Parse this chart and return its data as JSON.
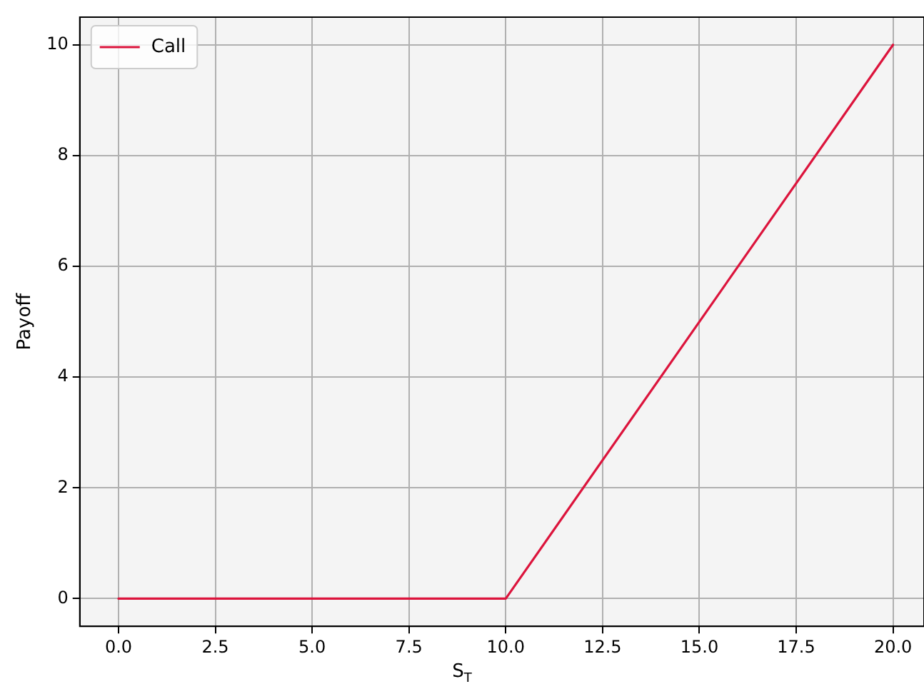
{
  "chart_data": {
    "type": "line",
    "xlabel": "S$_{T}$",
    "ylabel": "Payoff",
    "series": [
      {
        "name": "Call",
        "color": "#dc143c",
        "x": [
          0,
          10,
          20
        ],
        "values": [
          0,
          0,
          10
        ]
      }
    ],
    "xlim": [
      -1,
      20.8
    ],
    "ylim": [
      -0.5,
      10.5
    ],
    "xticks": [
      {
        "value": 0,
        "label": "0.0"
      },
      {
        "value": 2.5,
        "label": "2.5"
      },
      {
        "value": 5,
        "label": "5.0"
      },
      {
        "value": 7.5,
        "label": "7.5"
      },
      {
        "value": 10,
        "label": "10.0"
      },
      {
        "value": 12.5,
        "label": "12.5"
      },
      {
        "value": 15,
        "label": "15.0"
      },
      {
        "value": 17.5,
        "label": "17.5"
      },
      {
        "value": 20,
        "label": "20.0"
      }
    ],
    "yticks": [
      0,
      2,
      4,
      6,
      8,
      10
    ],
    "grid": true,
    "legend": "top left",
    "marker": "none",
    "line_style": "solid"
  }
}
